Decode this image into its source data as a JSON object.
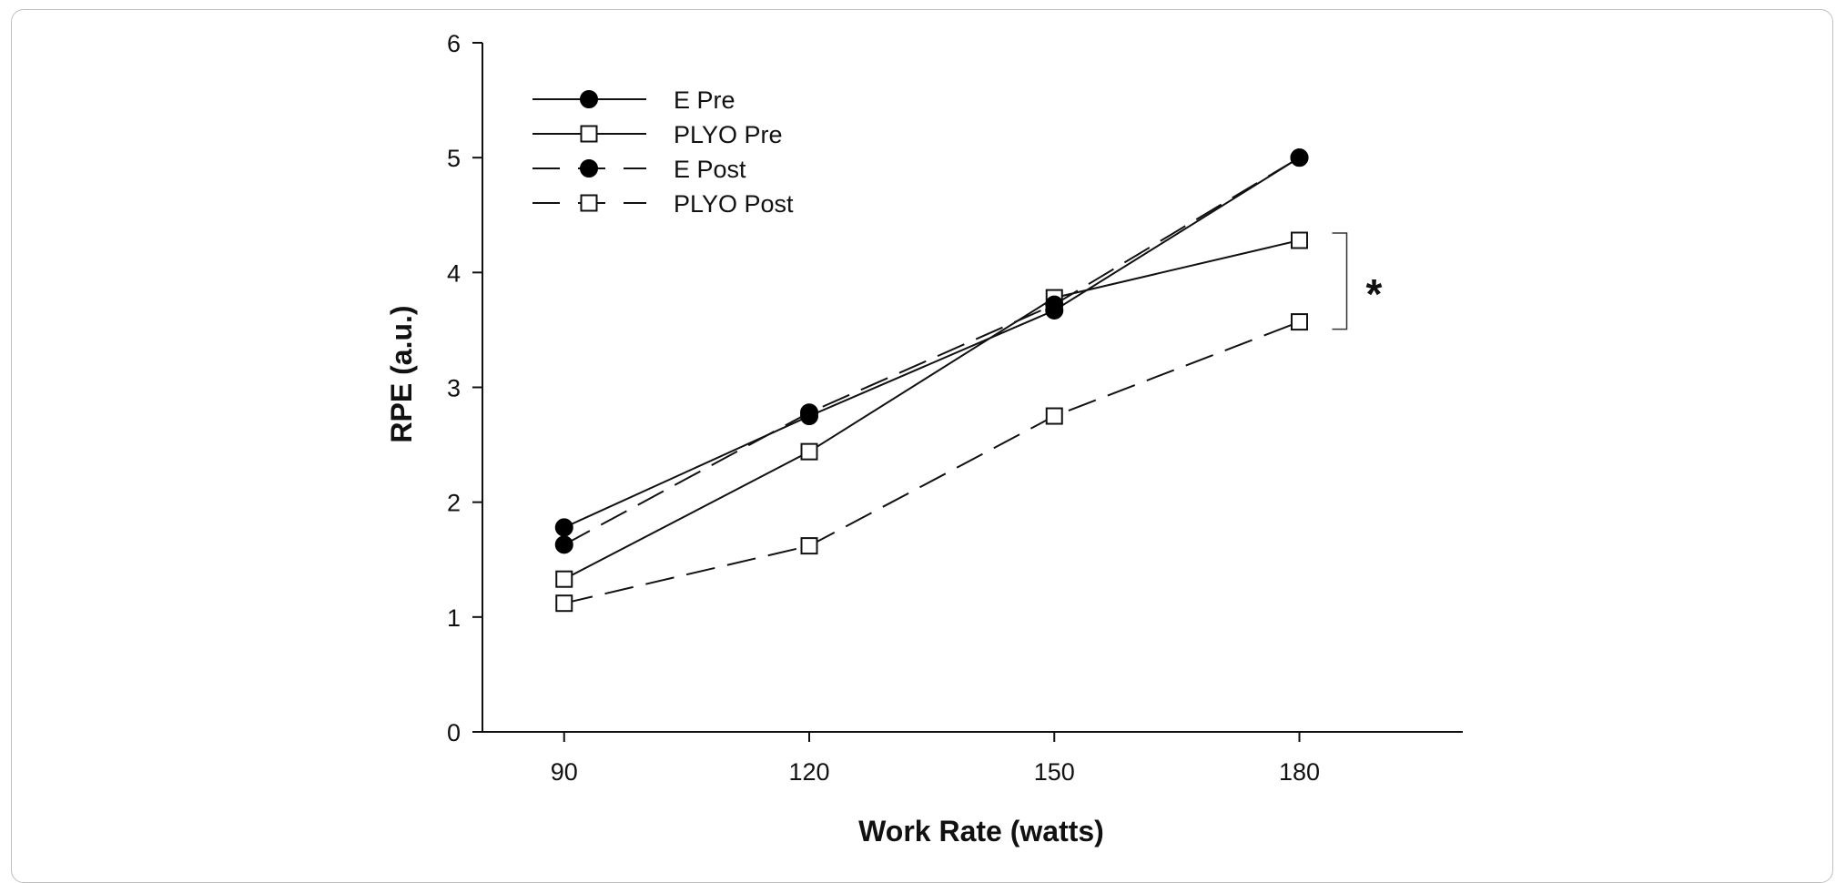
{
  "chart_data": {
    "type": "line",
    "xlabel": "Work Rate (watts)",
    "ylabel": "RPE (a.u.)",
    "x": [
      90,
      120,
      150,
      180
    ],
    "xlim": [
      80,
      200
    ],
    "ylim": [
      0,
      6
    ],
    "yticks": [
      "0",
      "1",
      "2",
      "3",
      "4",
      "5",
      "6"
    ],
    "xticks": [
      "90",
      "120",
      "150",
      "180"
    ],
    "grid": false,
    "legend_position": "top-left",
    "series": [
      {
        "name": "E Pre",
        "values": [
          1.78,
          2.75,
          3.67,
          5.0
        ],
        "marker": "filled-circle",
        "line": "solid"
      },
      {
        "name": "PLYO Pre",
        "values": [
          1.33,
          2.44,
          3.78,
          4.28
        ],
        "marker": "open-square",
        "line": "solid"
      },
      {
        "name": "E Post",
        "values": [
          1.63,
          2.78,
          3.72,
          5.0
        ],
        "marker": "filled-circle",
        "line": "dashed"
      },
      {
        "name": "PLYO Post",
        "values": [
          1.12,
          1.62,
          2.75,
          3.57
        ],
        "marker": "open-square",
        "line": "dashed"
      }
    ],
    "annotations": [
      {
        "text": "*",
        "bracket_x": 180,
        "bracket_from": 3.57,
        "bracket_to": 4.28
      }
    ]
  }
}
